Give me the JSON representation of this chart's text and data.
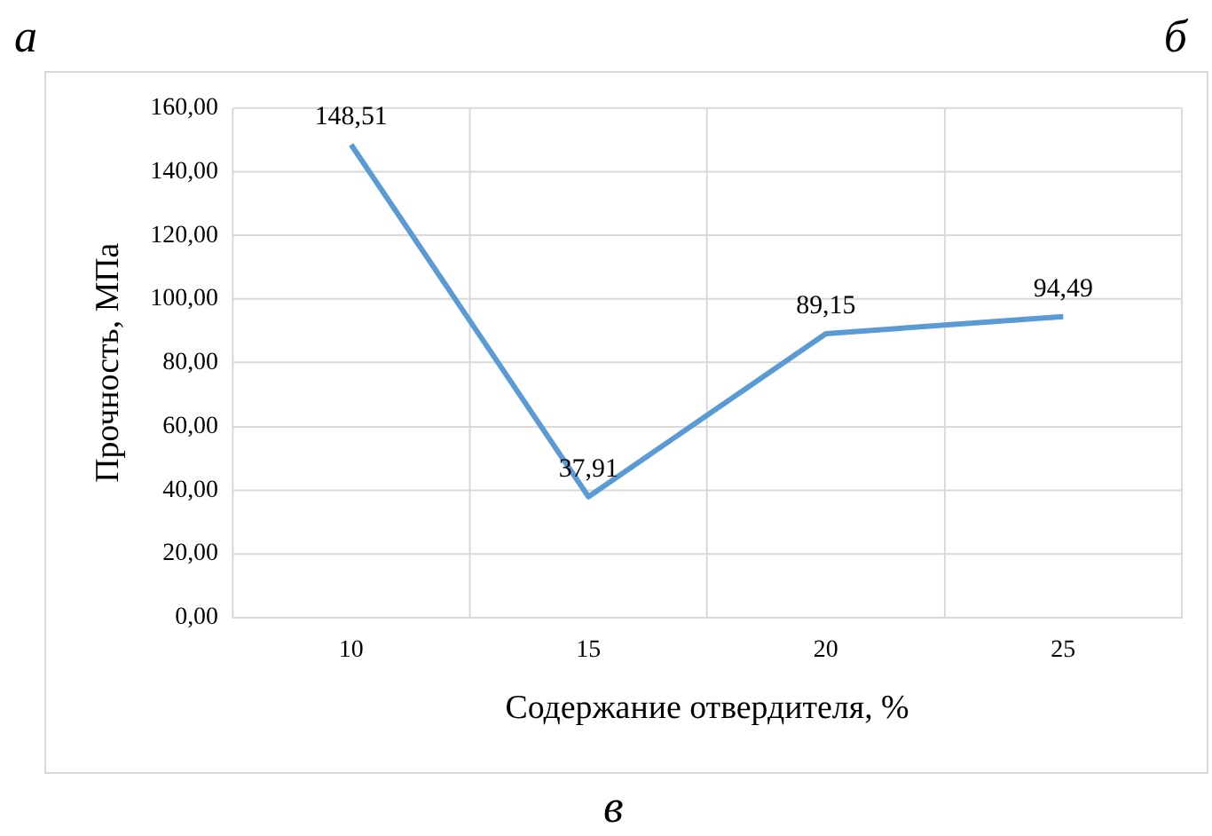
{
  "chart_data": {
    "type": "line",
    "xlabel": "Содержание отвердителя, %",
    "ylabel": "Прочность, МПа",
    "categories": [
      "10",
      "15",
      "20",
      "25"
    ],
    "series": [
      {
        "color": "#5b9bd5",
        "values": [
          148.51,
          37.91,
          89.15,
          94.49
        ],
        "value_labels": [
          "148,51",
          "37,91",
          "89,15",
          "94,49"
        ]
      }
    ],
    "ylim": [
      0,
      160
    ],
    "yticks": [
      {
        "value": 0,
        "label": "0,00"
      },
      {
        "value": 20,
        "label": "20,00"
      },
      {
        "value": 40,
        "label": "40,00"
      },
      {
        "value": 60,
        "label": "60,00"
      },
      {
        "value": 80,
        "label": "80,00"
      },
      {
        "value": 100,
        "label": "100,00"
      },
      {
        "value": 120,
        "label": "120,00"
      },
      {
        "value": 140,
        "label": "140,00"
      },
      {
        "value": 160,
        "label": "160,00"
      }
    ],
    "grid": true,
    "legend": false,
    "marker": "none",
    "line_style": "solid",
    "annotations": [
      "а",
      "б",
      "в"
    ]
  }
}
